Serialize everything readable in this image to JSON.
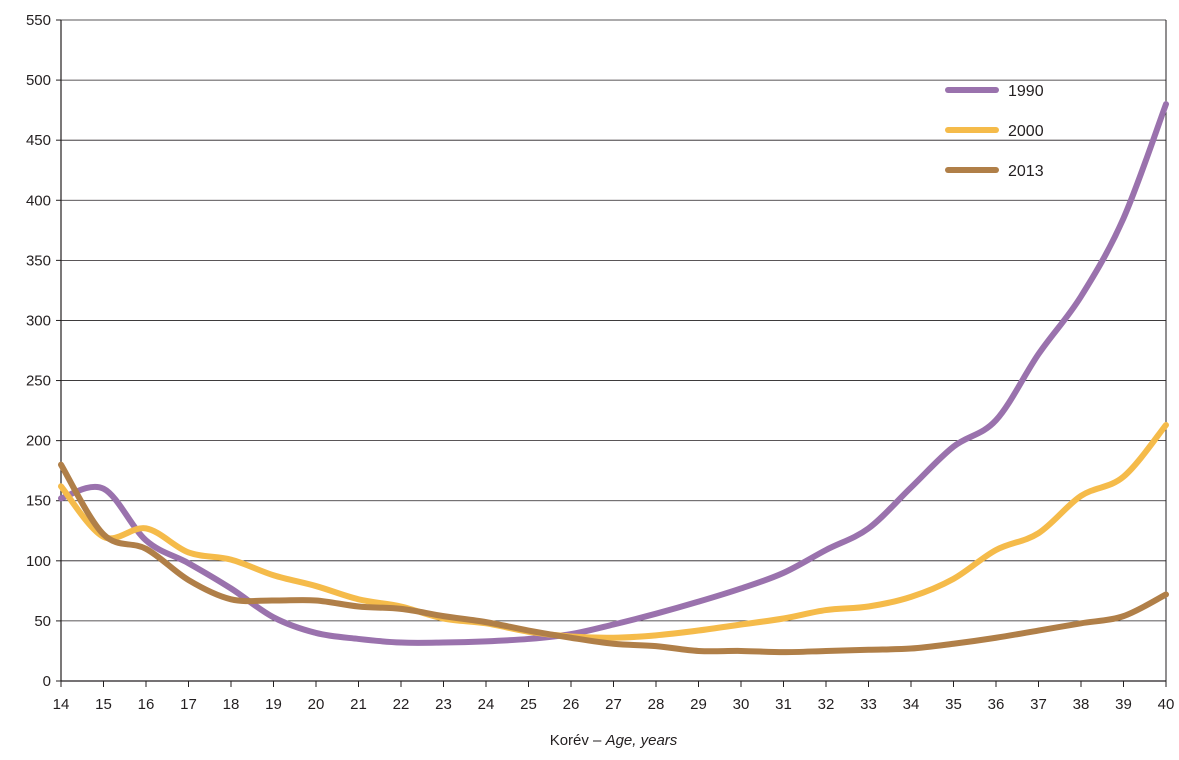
{
  "chart_data": {
    "type": "line",
    "title": "",
    "xlabel_main": "Korév – ",
    "xlabel_italic": "Age, years",
    "ylabel": "",
    "ylim": [
      0,
      550
    ],
    "yticks": [
      0,
      50,
      100,
      150,
      200,
      250,
      300,
      350,
      400,
      450,
      500,
      550
    ],
    "x": [
      14,
      15,
      16,
      17,
      18,
      19,
      20,
      21,
      22,
      23,
      24,
      25,
      26,
      27,
      28,
      29,
      30,
      31,
      32,
      33,
      34,
      35,
      36,
      37,
      38,
      39,
      40
    ],
    "grid": "horizontal",
    "legend_position": "top-right",
    "series": [
      {
        "name": "1990",
        "color": "#9a72ad",
        "values": [
          152,
          160,
          117,
          98,
          77,
          53,
          40,
          35,
          32,
          32,
          33,
          35,
          39,
          47,
          56,
          66,
          77,
          90,
          109,
          127,
          161,
          195,
          217,
          272,
          320,
          385,
          480
        ]
      },
      {
        "name": "2000",
        "color": "#f5bb4a",
        "values": [
          162,
          120,
          127,
          107,
          101,
          88,
          79,
          68,
          62,
          52,
          48,
          41,
          37,
          36,
          38,
          42,
          47,
          52,
          59,
          62,
          70,
          85,
          109,
          123,
          154,
          170,
          213
        ]
      },
      {
        "name": "2013",
        "color": "#b07f48",
        "values": [
          180,
          122,
          110,
          84,
          68,
          67,
          67,
          62,
          60,
          54,
          49,
          42,
          36,
          31,
          29,
          25,
          25,
          24,
          25,
          26,
          27,
          31,
          36,
          42,
          48,
          54,
          72
        ]
      }
    ]
  }
}
